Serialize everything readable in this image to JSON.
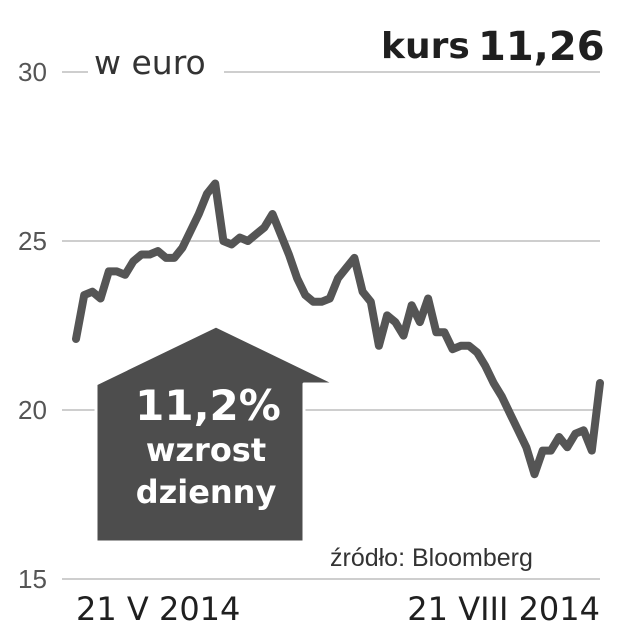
{
  "unit_label": "w euro",
  "rate": {
    "label": "kurs",
    "value": "11,26"
  },
  "badge": {
    "line1": "11,2%",
    "line2": "wzrost",
    "line3": "dzienny"
  },
  "source": "źródło: Bloomberg",
  "colors": {
    "line": "#555555",
    "grid": "#bdbdbd",
    "badge_fill": "#4d4d4d",
    "badge_stroke": "#ffffff"
  },
  "chart_data": {
    "type": "line",
    "title": "",
    "xlabel": "",
    "ylabel": "w euro",
    "ylim": [
      15,
      30
    ],
    "yticks": [
      "30",
      "25",
      "20",
      "15"
    ],
    "grid": true,
    "x_labels": [
      "21 V 2014",
      "21 VIII 2014"
    ],
    "values": [
      22.1,
      23.4,
      23.5,
      23.3,
      24.1,
      24.1,
      24.0,
      24.4,
      24.6,
      24.6,
      24.7,
      24.5,
      24.5,
      24.8,
      25.3,
      25.8,
      26.4,
      26.7,
      25.0,
      24.9,
      25.1,
      25.0,
      25.2,
      25.4,
      25.8,
      25.2,
      24.6,
      23.9,
      23.4,
      23.2,
      23.2,
      23.3,
      23.9,
      24.2,
      24.5,
      23.5,
      23.2,
      21.9,
      22.8,
      22.6,
      22.2,
      23.1,
      22.6,
      23.3,
      22.3,
      22.3,
      21.8,
      21.9,
      21.9,
      21.7,
      21.3,
      20.8,
      20.4,
      19.9,
      19.4,
      18.9,
      18.1,
      18.8,
      18.8,
      19.2,
      18.9,
      19.3,
      19.4,
      18.8,
      20.8
    ]
  }
}
